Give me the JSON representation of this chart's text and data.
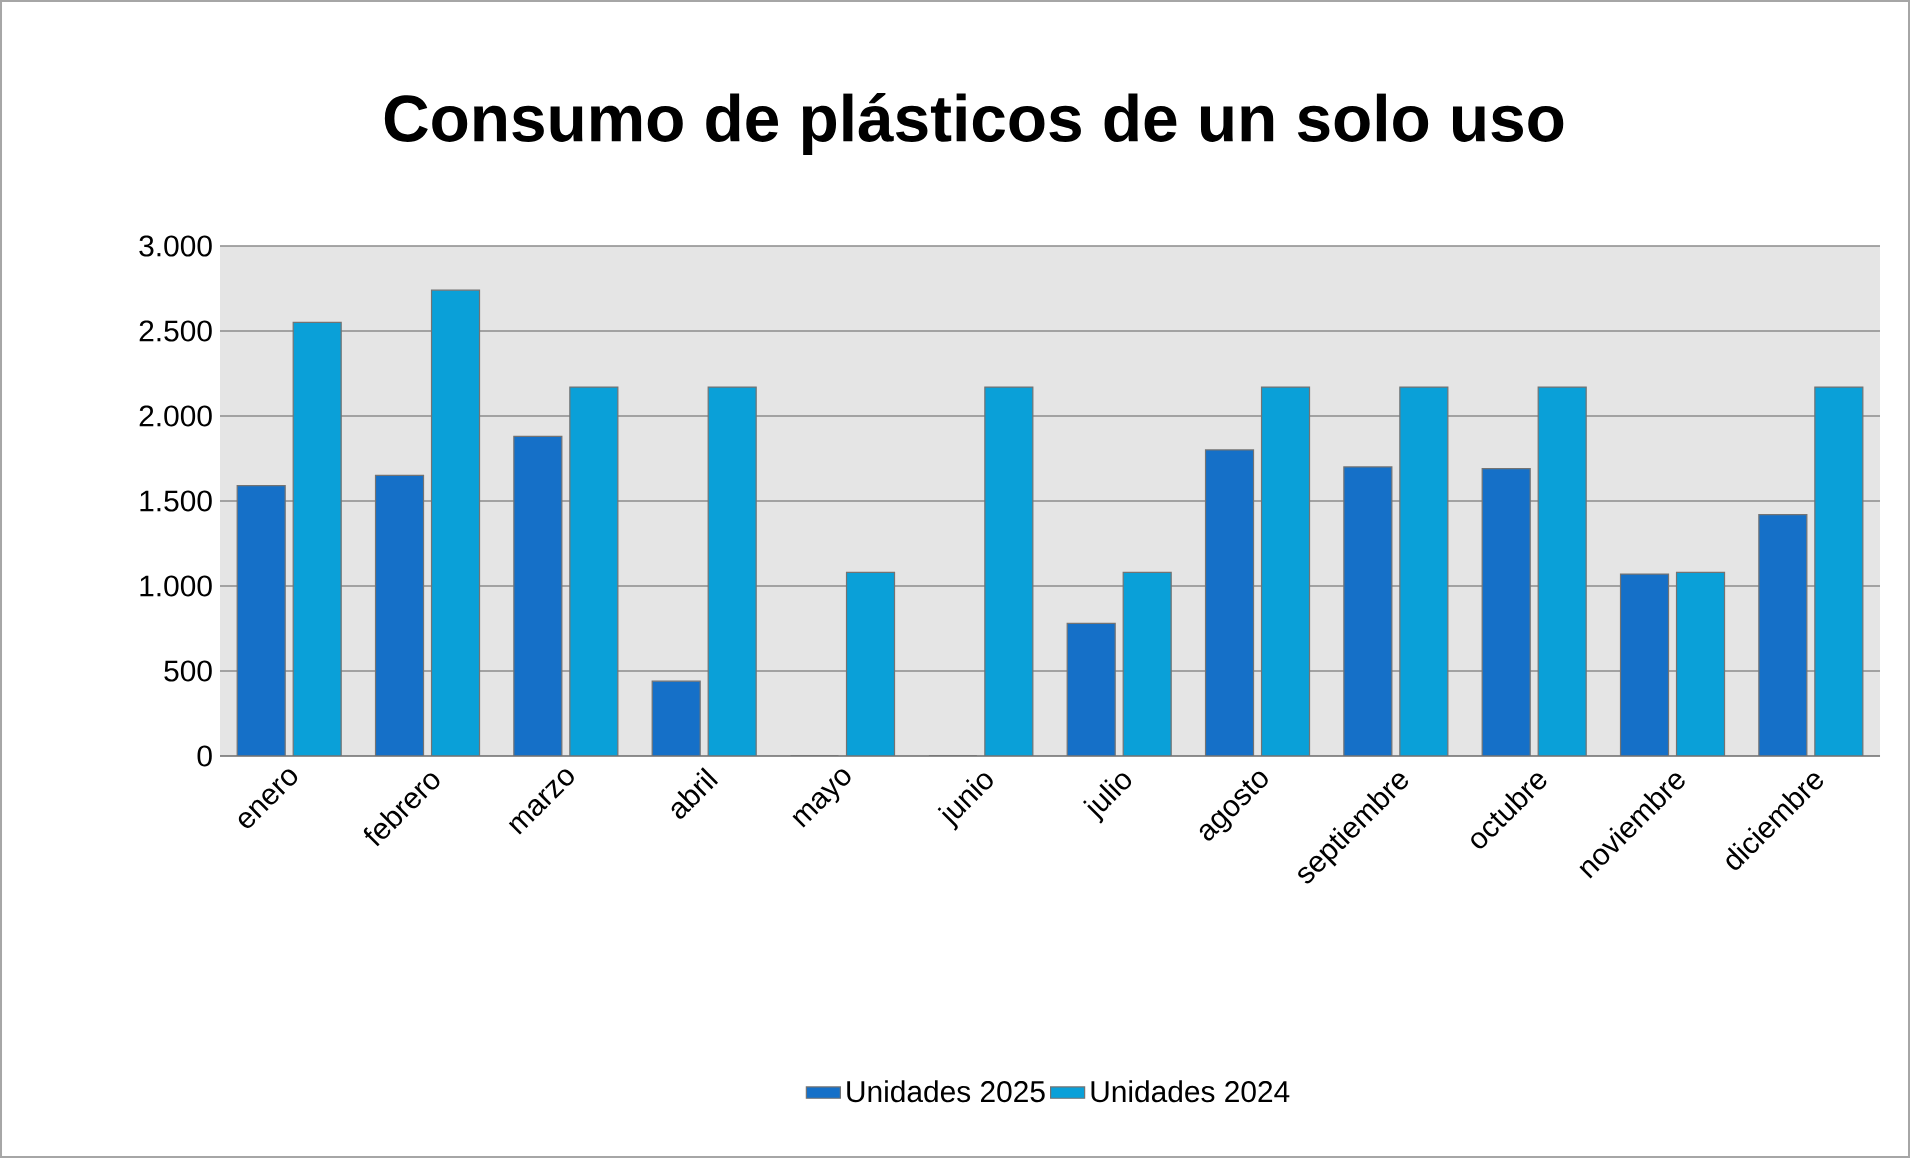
{
  "chart_data": {
    "type": "bar",
    "title": "Consumo de plásticos de un solo uso",
    "categories": [
      "enero",
      "febrero",
      "marzo",
      "abril",
      "mayo",
      "junio",
      "julio",
      "agosto",
      "septiembre",
      "octubre",
      "noviembre",
      "diciembre"
    ],
    "series": [
      {
        "name": "Unidades 2025",
        "color": "#1570c8",
        "values": [
          1590,
          1650,
          1880,
          440,
          0,
          0,
          780,
          1800,
          1700,
          1690,
          1070,
          1420
        ]
      },
      {
        "name": "Unidades 2024",
        "color": "#0aa0d8",
        "values": [
          2550,
          2740,
          2170,
          2170,
          1080,
          2170,
          1080,
          2170,
          2170,
          2170,
          1080,
          2170
        ]
      }
    ],
    "ylim": [
      0,
      3000
    ],
    "yticks": [
      {
        "value": 0,
        "label": "0"
      },
      {
        "value": 500,
        "label": "500"
      },
      {
        "value": 1000,
        "label": "1.000"
      },
      {
        "value": 1500,
        "label": "1.500"
      },
      {
        "value": 2000,
        "label": "2.000"
      },
      {
        "value": 2500,
        "label": "2.500"
      },
      {
        "value": 3000,
        "label": "3.000"
      }
    ],
    "grid": "y",
    "legend": "bottom"
  }
}
